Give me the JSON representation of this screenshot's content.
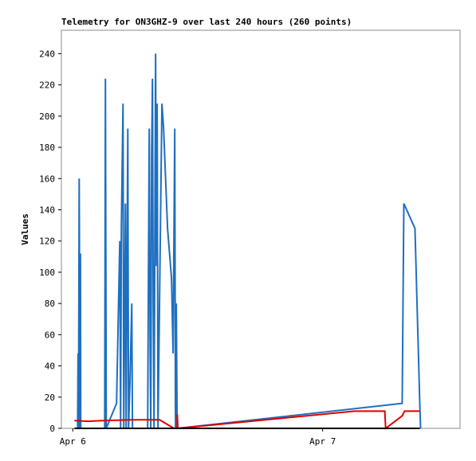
{
  "chart_data": {
    "type": "line",
    "title": "Telemetry for ON3GHZ-9 over last 240 hours (260 points)",
    "y_label": "Values",
    "xlim": [
      -1.1,
      37.2
    ],
    "xticks": [
      {
        "value": 0,
        "label": "Apr 6"
      },
      {
        "value": 24,
        "label": "Apr 7"
      }
    ],
    "ylim": [
      0,
      255
    ],
    "yticks": [
      0,
      20,
      40,
      60,
      80,
      100,
      120,
      140,
      160,
      180,
      200,
      220,
      240
    ],
    "grid": false,
    "series": [
      {
        "color": "#1f6fc0",
        "x": [
          0.46,
          0.5,
          0.54,
          0.61,
          0.69,
          0.73,
          0.76,
          3.06,
          3.13,
          3.21,
          4.2,
          4.51,
          4.59,
          4.66,
          4.82,
          4.89,
          5.05,
          5.12,
          5.28,
          5.35,
          5.5,
          5.66,
          5.73,
          7.19,
          7.26,
          7.34,
          7.42,
          7.49,
          7.57,
          7.65,
          7.72,
          7.8,
          7.95,
          8.03,
          8.1,
          8.18,
          8.56,
          8.72,
          9.1,
          9.48,
          9.63,
          9.79,
          9.86,
          9.94,
          10.02,
          31.64,
          31.8,
          32.87,
          33.33,
          33.41
        ],
        "values": [
          0,
          48,
          0,
          160,
          0,
          112,
          0,
          0,
          224,
          0,
          16,
          120,
          0,
          128,
          208,
          0,
          144,
          0,
          192,
          0,
          32,
          80,
          0,
          0,
          96,
          192,
          56,
          0,
          176,
          224,
          80,
          0,
          240,
          104,
          208,
          0,
          208,
          192,
          128,
          96,
          48,
          192,
          0,
          80,
          0,
          16,
          144,
          128,
          16,
          0
        ]
      },
      {
        "color": "#e00000",
        "x": [
          0.15,
          1.45,
          2.98,
          5.66,
          8.33,
          9.71,
          10.02,
          10.03,
          10.09,
          27.06,
          29.97,
          30.05,
          31.64,
          31.87,
          33.33
        ],
        "values": [
          5,
          4.5,
          5,
          5.5,
          5.5,
          0,
          0,
          9,
          0,
          11,
          11,
          0,
          8,
          11,
          11
        ]
      },
      {
        "color": "#000000",
        "x": [
          0.15,
          33.33
        ],
        "values": [
          0,
          0
        ]
      }
    ]
  }
}
